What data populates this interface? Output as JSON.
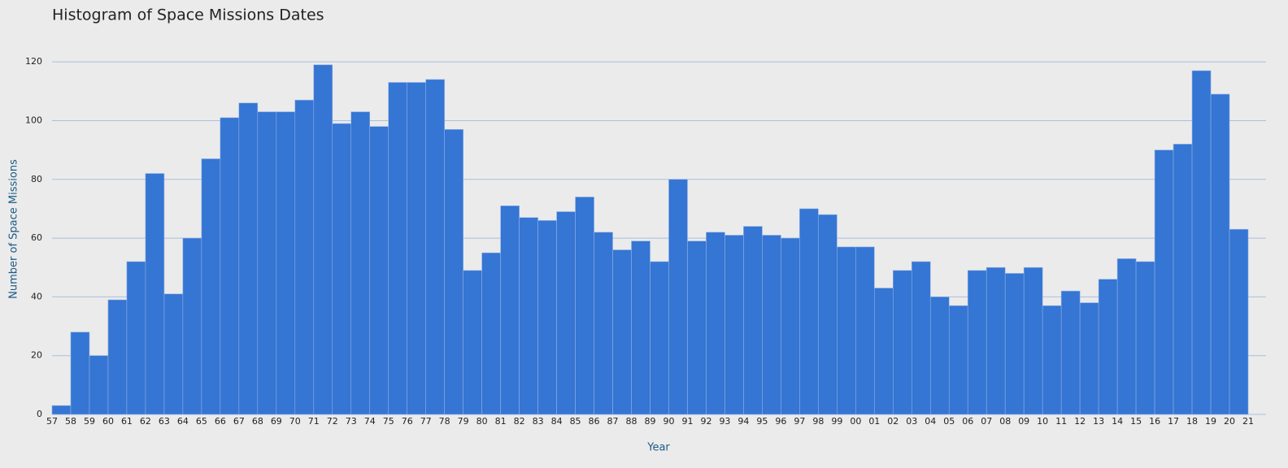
{
  "chart_data": {
    "type": "histogram",
    "title": "Histogram of Space Missions Dates",
    "x_label": "Year",
    "y_label": "Number of Space Missions",
    "bins": [
      "57",
      "58",
      "59",
      "60",
      "61",
      "62",
      "63",
      "64",
      "65",
      "66",
      "67",
      "68",
      "69",
      "70",
      "71",
      "72",
      "73",
      "74",
      "75",
      "76",
      "77",
      "78",
      "79",
      "80",
      "81",
      "82",
      "83",
      "84",
      "85",
      "86",
      "87",
      "88",
      "89",
      "90",
      "91",
      "92",
      "93",
      "94",
      "95",
      "96",
      "97",
      "98",
      "99",
      "00",
      "01",
      "02",
      "03",
      "04",
      "05",
      "06",
      "07",
      "08",
      "09",
      "10",
      "11",
      "12",
      "13",
      "14",
      "15",
      "16",
      "17",
      "18",
      "19",
      "20",
      "21"
    ],
    "values": [
      3,
      28,
      20,
      39,
      52,
      82,
      41,
      60,
      87,
      101,
      106,
      103,
      103,
      107,
      119,
      99,
      103,
      98,
      113,
      113,
      114,
      97,
      49,
      55,
      71,
      67,
      66,
      69,
      74,
      62,
      56,
      59,
      52,
      80,
      59,
      62,
      61,
      64,
      61,
      60,
      70,
      68,
      57,
      57,
      43,
      49,
      52,
      40,
      37,
      49,
      50,
      48,
      50,
      37,
      42,
      38,
      46,
      53,
      52,
      90,
      92,
      117,
      109,
      63
    ],
    "color": "#3575d3",
    "ylim": [
      0,
      130
    ],
    "yticks": [
      0,
      20,
      40,
      60,
      80,
      100,
      120
    ],
    "grid": true
  }
}
